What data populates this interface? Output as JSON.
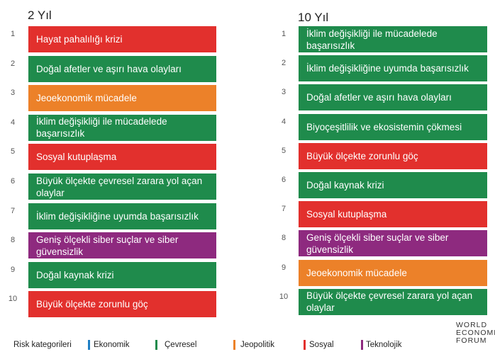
{
  "colors": {
    "Ekonomik": "#1f7fc4",
    "Çevresel": "#1f8b4c",
    "Jeopolitik": "#ec8129",
    "Sosyal": "#e2302d",
    "Teknolojik": "#8e2a7f"
  },
  "chart_data": [
    {
      "type": "table",
      "title": "2 Yıl",
      "rows": [
        {
          "rank": "1",
          "label": "Hayat pahalılığı krizi",
          "category": "Sosyal"
        },
        {
          "rank": "2",
          "label": "Doğal afetler ve aşırı hava olayları",
          "category": "Çevresel"
        },
        {
          "rank": "3",
          "label": "Jeoekonomik mücadele",
          "category": "Jeopolitik"
        },
        {
          "rank": "4",
          "label": "İklim değişikliği ile mücadelede başarısızlık",
          "category": "Çevresel"
        },
        {
          "rank": "5",
          "label": "Sosyal kutuplaşma",
          "category": "Sosyal"
        },
        {
          "rank": "6",
          "label": "Büyük ölçekte çevresel zarara yol açan olaylar",
          "category": "Çevresel"
        },
        {
          "rank": "7",
          "label": "İklim değişikliğine uyumda başarısızlık",
          "category": "Çevresel"
        },
        {
          "rank": "8",
          "label": "Geniş ölçekli siber suçlar ve siber güvensizlik",
          "category": "Teknolojik"
        },
        {
          "rank": "9",
          "label": "Doğal kaynak krizi",
          "category": "Çevresel"
        },
        {
          "rank": "10",
          "label": "Büyük ölçekte zorunlu göç",
          "category": "Sosyal"
        }
      ]
    },
    {
      "type": "table",
      "title": "10 Yıl",
      "rows": [
        {
          "rank": "1",
          "label": "İklim değişikliği ile mücadelede başarısızlık",
          "category": "Çevresel"
        },
        {
          "rank": "2",
          "label": "İklim değişikliğine uyumda başarısızlık",
          "category": "Çevresel"
        },
        {
          "rank": "3",
          "label": "Doğal afetler ve aşırı hava olayları",
          "category": "Çevresel"
        },
        {
          "rank": "4",
          "label": "Biyoçeşitlilik ve ekosistemin çökmesi",
          "category": "Çevresel"
        },
        {
          "rank": "5",
          "label": "Büyük ölçekte zorunlu göç",
          "category": "Sosyal"
        },
        {
          "rank": "6",
          "label": "Doğal kaynak krizi",
          "category": "Çevresel"
        },
        {
          "rank": "7",
          "label": "Sosyal kutuplaşma",
          "category": "Sosyal"
        },
        {
          "rank": "8",
          "label": "Geniş ölçekli siber suçlar ve siber güvensizlik",
          "category": "Teknolojik"
        },
        {
          "rank": "9",
          "label": "Jeoekonomik mücadele",
          "category": "Jeopolitik"
        },
        {
          "rank": "10",
          "label": "Büyük ölçekte çevresel zarara yol açan olaylar",
          "category": "Çevresel"
        }
      ]
    }
  ],
  "legend": {
    "title": "Risk kategorileri",
    "items": [
      "Ekonomik",
      "Çevresel",
      "Jeopolitik",
      "Sosyal",
      "Teknolojik"
    ]
  },
  "brand": {
    "line1": "WORLD",
    "line2": "ECONOMIC",
    "line3": "FORUM"
  }
}
